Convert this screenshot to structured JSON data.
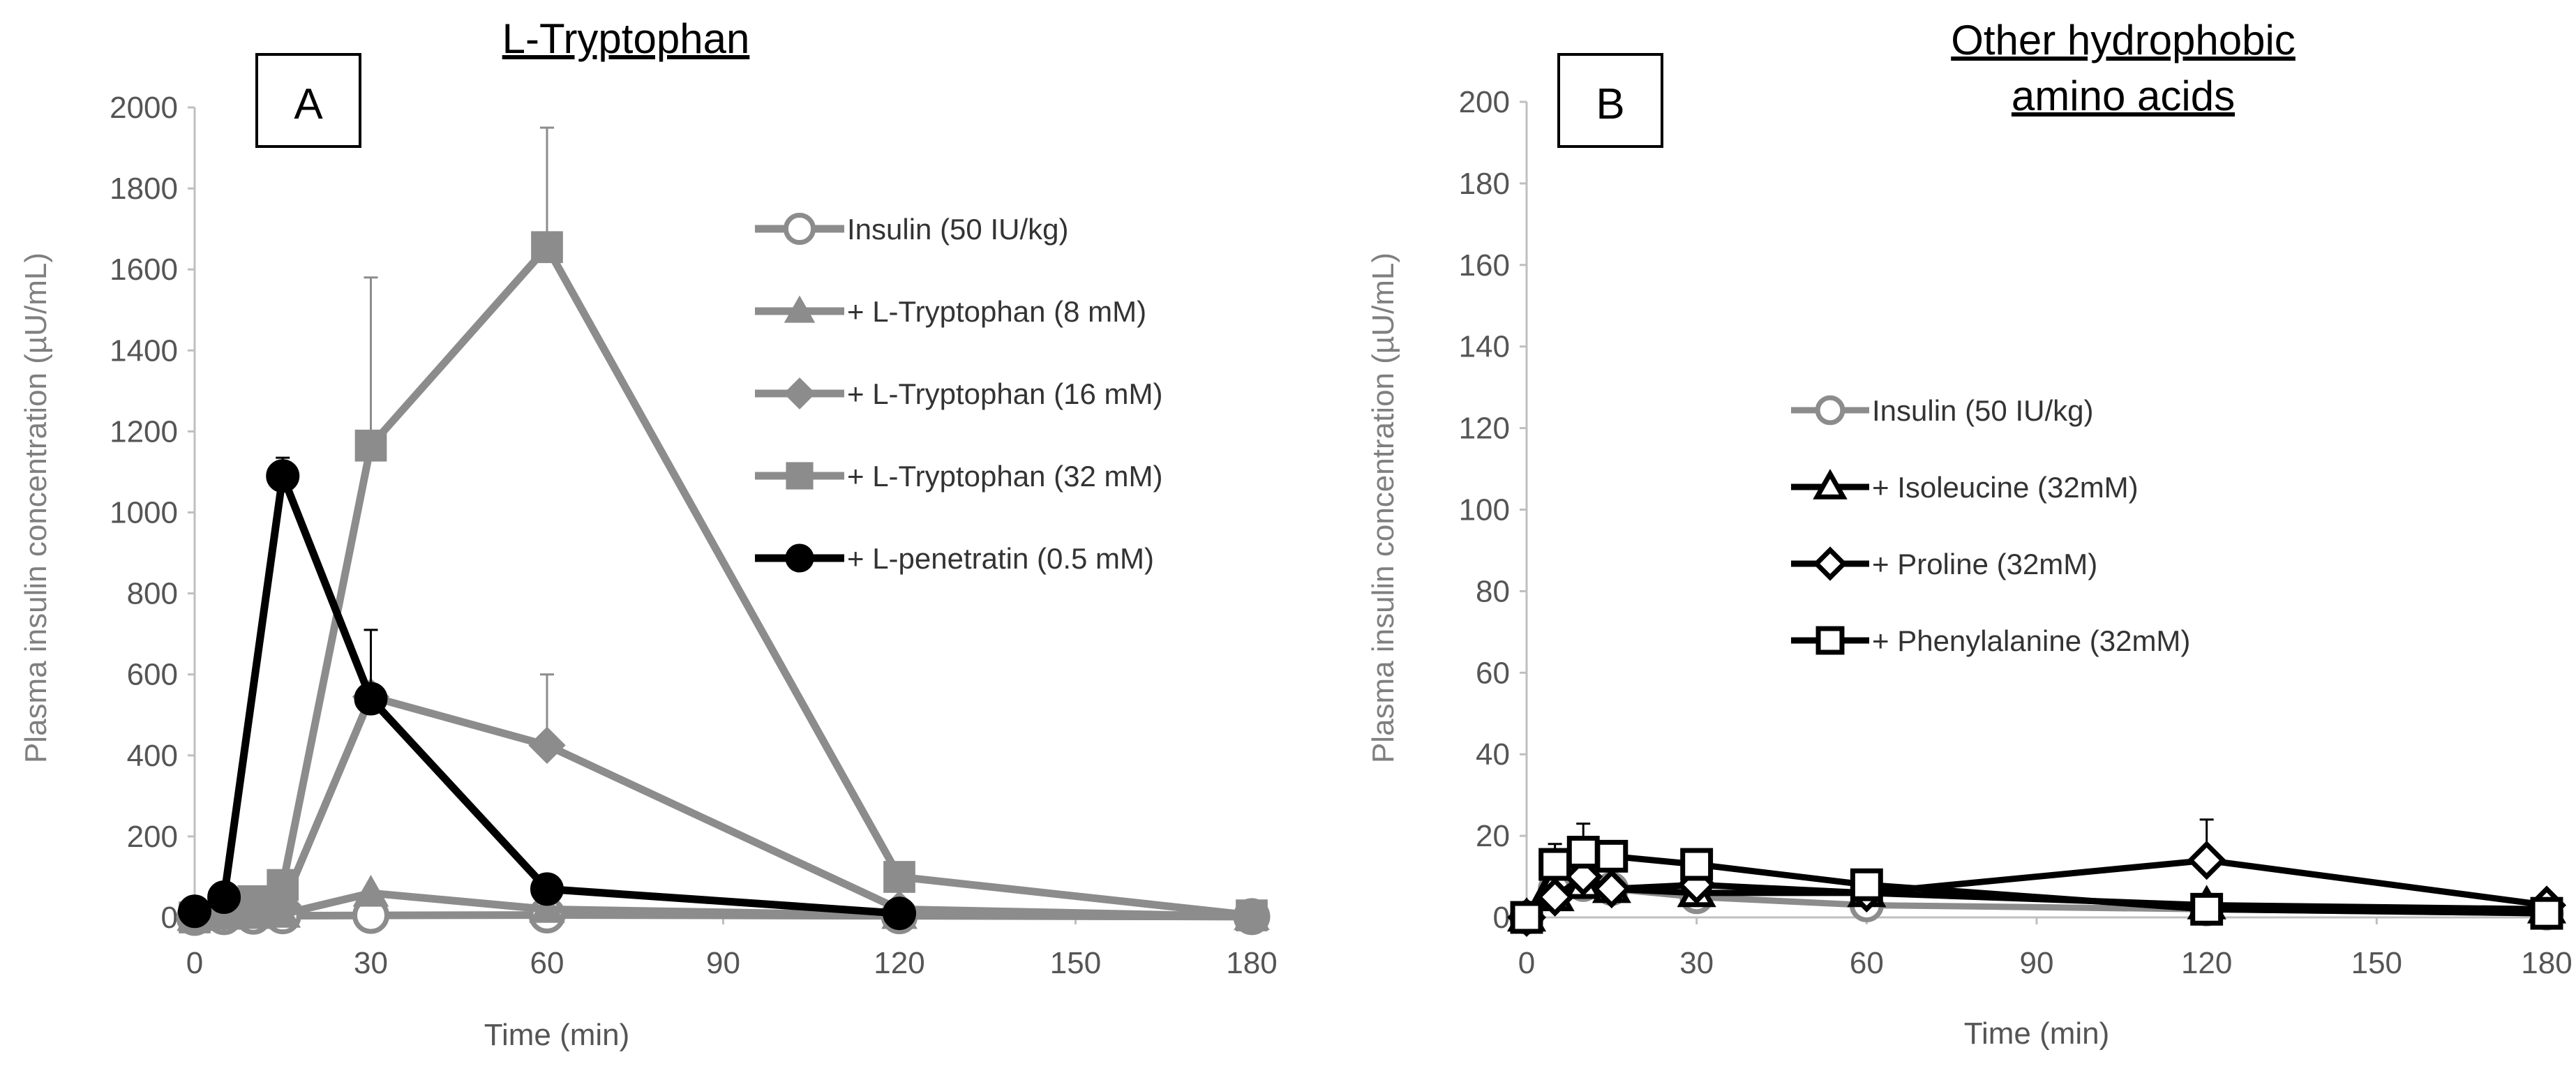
{
  "chart_data": [
    {
      "type": "line",
      "panel_label": "A",
      "title": "L-Tryptophan",
      "xlabel": "Time (min)",
      "ylabel": "Plasma insulin concentration (µU/mL)",
      "xlim": [
        0,
        180
      ],
      "ylim": [
        0,
        2000
      ],
      "xticks": [
        "0",
        "30",
        "60",
        "90",
        "120",
        "150",
        "180"
      ],
      "yticks": [
        "0",
        "200",
        "400",
        "600",
        "800",
        "1000",
        "1200",
        "1400",
        "1600",
        "1800",
        "2000"
      ],
      "grid": false,
      "legend_position": "top-right",
      "series": [
        {
          "name": "Insulin (50 IU/kg)",
          "color": "#8c8c8c",
          "marker": "open-circle",
          "x": [
            0,
            5,
            10,
            15,
            30,
            60,
            120,
            180
          ],
          "y": [
            0,
            2,
            3,
            4,
            5,
            6,
            4,
            2
          ],
          "err": [
            0,
            0,
            0,
            0,
            0,
            0,
            0,
            0
          ]
        },
        {
          "name": "+ L-Tryptophan (8 mM)",
          "color": "#8c8c8c",
          "marker": "triangle",
          "x": [
            0,
            5,
            10,
            15,
            30,
            60,
            120,
            180
          ],
          "y": [
            0,
            3,
            5,
            8,
            60,
            20,
            5,
            2
          ],
          "err": [
            0,
            0,
            0,
            0,
            0,
            0,
            0,
            0
          ]
        },
        {
          "name": "+ L-Tryptophan (16 mM)",
          "color": "#8c8c8c",
          "marker": "diamond",
          "x": [
            0,
            5,
            10,
            15,
            30,
            60,
            120,
            180
          ],
          "y": [
            0,
            10,
            20,
            30,
            545,
            425,
            20,
            2
          ],
          "err": [
            0,
            0,
            0,
            0,
            165,
            175,
            0,
            0
          ]
        },
        {
          "name": "+ L-Tryptophan (32 mM)",
          "color": "#8c8c8c",
          "marker": "square",
          "x": [
            0,
            5,
            10,
            15,
            30,
            60,
            120,
            180
          ],
          "y": [
            0,
            15,
            40,
            80,
            1165,
            1655,
            100,
            5
          ],
          "err": [
            0,
            0,
            0,
            0,
            415,
            295,
            0,
            0
          ]
        },
        {
          "name": "+ L-penetratin (0.5 mM)",
          "color": "#000000",
          "marker": "filled-circle",
          "x": [
            0,
            5,
            15,
            30,
            60,
            120
          ],
          "y": [
            15,
            50,
            1090,
            540,
            70,
            10
          ],
          "err": [
            0,
            0,
            45,
            170,
            0,
            0
          ]
        }
      ]
    },
    {
      "type": "line",
      "panel_label": "B",
      "title": "Other hydrophobic amino acids",
      "title_lines": [
        "Other hydrophobic",
        "amino acids"
      ],
      "xlabel": "Time (min)",
      "ylabel": "Plasma insulin concentration (µU/mL)",
      "xlim": [
        0,
        180
      ],
      "ylim": [
        0,
        200
      ],
      "xticks": [
        "0",
        "30",
        "60",
        "90",
        "120",
        "150",
        "180"
      ],
      "yticks": [
        "0",
        "20",
        "40",
        "60",
        "80",
        "100",
        "120",
        "140",
        "160",
        "180",
        "200"
      ],
      "grid": false,
      "legend_position": "center-right",
      "series": [
        {
          "name": "Insulin (50 IU/kg)",
          "color": "#8c8c8c",
          "marker": "open-circle",
          "x": [
            0,
            5,
            10,
            15,
            30,
            60,
            120,
            180
          ],
          "y": [
            0,
            7,
            8,
            7,
            5,
            3,
            2,
            1
          ],
          "err": [
            0,
            0,
            0,
            0,
            0,
            0,
            0,
            0
          ]
        },
        {
          "name": "+ Isoleucine (32mM)",
          "color": "#000000",
          "marker": "open-triangle",
          "x": [
            0,
            5,
            10,
            15,
            30,
            60,
            120,
            180
          ],
          "y": [
            0,
            5,
            8,
            7,
            6,
            6,
            3,
            2
          ],
          "err": [
            0,
            0,
            0,
            0,
            0,
            0,
            0,
            0
          ]
        },
        {
          "name": "+ Proline (32mM)",
          "color": "#000000",
          "marker": "open-diamond",
          "x": [
            0,
            5,
            10,
            15,
            30,
            60,
            120,
            180
          ],
          "y": [
            0,
            5,
            10,
            7,
            8,
            6,
            14,
            3
          ],
          "err": [
            0,
            0,
            0,
            0,
            0,
            0,
            10,
            0
          ]
        },
        {
          "name": "+ Phenylalanine (32mM)",
          "color": "#000000",
          "marker": "open-square",
          "x": [
            0,
            5,
            10,
            15,
            30,
            60,
            120,
            180
          ],
          "y": [
            0,
            13,
            16,
            15,
            13,
            8,
            2,
            1
          ],
          "err": [
            0,
            5,
            7,
            0,
            0,
            0,
            0,
            0
          ]
        }
      ]
    }
  ]
}
